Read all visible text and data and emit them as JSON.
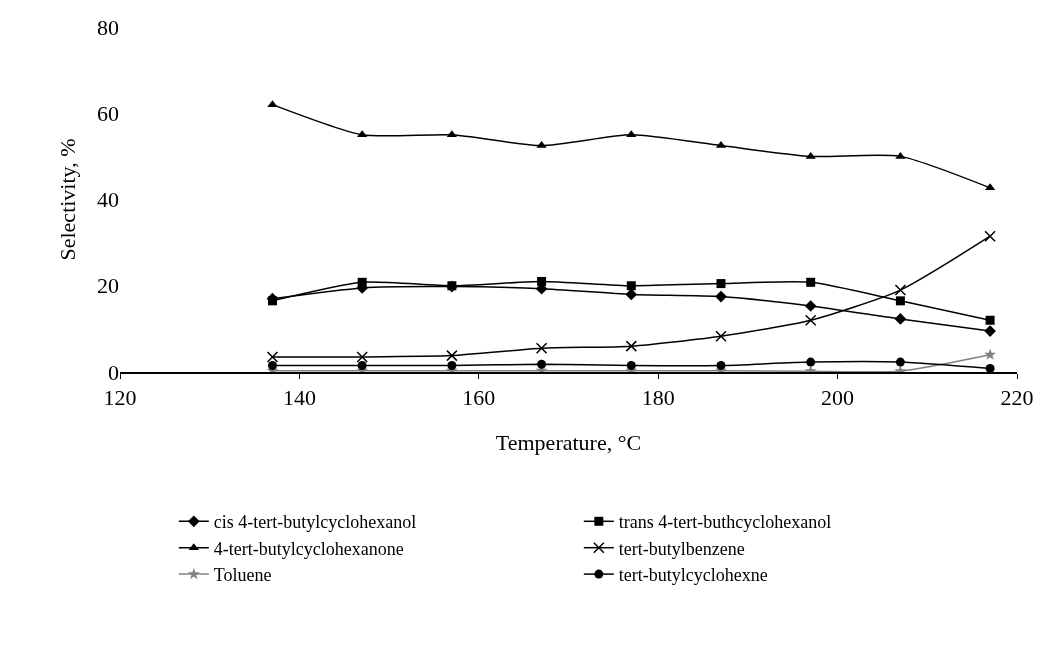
{
  "chart_data": {
    "type": "line",
    "xlabel": "Temperature, °C",
    "ylabel": "Selectivity, %",
    "x": [
      137,
      147,
      157,
      167,
      177,
      187,
      197,
      207,
      217
    ],
    "xlim": [
      120,
      220
    ],
    "xticks": [
      120,
      140,
      160,
      180,
      200,
      220
    ],
    "ylim": [
      0,
      80
    ],
    "yticks": [
      0,
      20,
      40,
      60,
      80
    ],
    "grid": false,
    "legend": "bottom",
    "line_style": "solid",
    "series": [
      {
        "name": "cis 4-tert-butylcyclohexanol",
        "color": "#000000",
        "marker": "diamond",
        "values": [
          17,
          19.5,
          19.8,
          19.3,
          18,
          17.5,
          15.3,
          12.3,
          9.5
        ]
      },
      {
        "name": "trans 4-tert-buthcyclohexanol",
        "color": "#000000",
        "marker": "square",
        "values": [
          16.5,
          20.8,
          20,
          21,
          20,
          20.5,
          20.8,
          16.5,
          12
        ]
      },
      {
        "name": "4-tert-butylcyclohexanone",
        "color": "#000000",
        "marker": "triangle",
        "values": [
          62,
          55,
          55,
          52.5,
          55,
          52.5,
          50,
          50,
          42.7
        ]
      },
      {
        "name": "tert-butylbenzene",
        "color": "#000000",
        "marker": "cross",
        "values": [
          3.5,
          3.5,
          3.8,
          5.5,
          6,
          8.3,
          12,
          19,
          31.5
        ]
      },
      {
        "name": "Toluene",
        "color": "#808080",
        "marker": "star",
        "values": [
          0.3,
          0.3,
          0.3,
          0.3,
          0.3,
          0.3,
          0.2,
          0.2,
          4
        ]
      },
      {
        "name": "tert-butylcyclohexne",
        "color": "#000000",
        "marker": "circle",
        "values": [
          1.5,
          1.5,
          1.5,
          1.8,
          1.5,
          1.5,
          2.3,
          2.3,
          0.8
        ]
      }
    ]
  }
}
